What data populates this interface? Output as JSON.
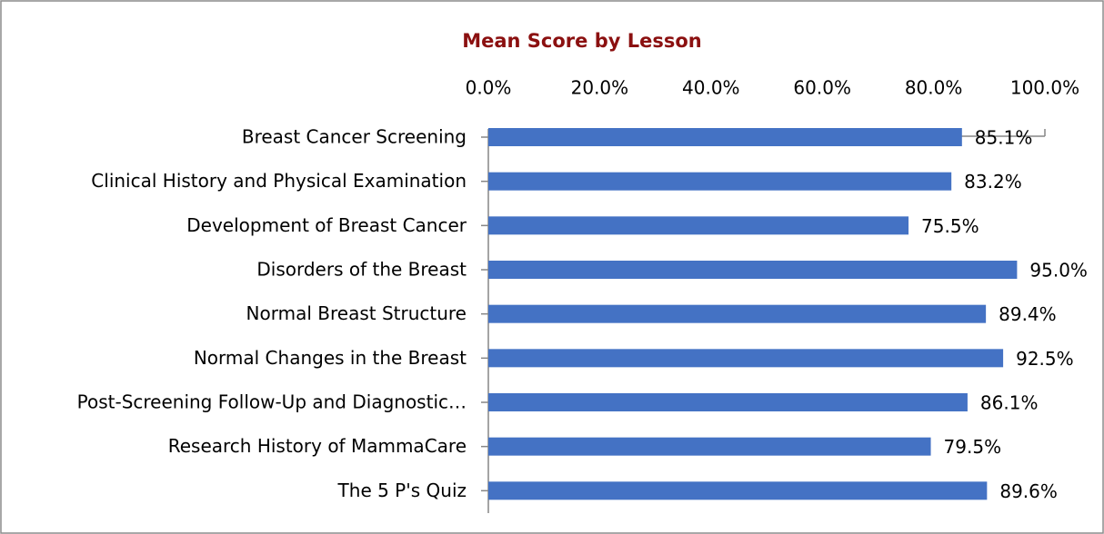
{
  "chart_data": {
    "type": "barh",
    "title": "Mean Score by Lesson",
    "categories": [
      "Breast Cancer Screening",
      "Clinical History and Physical Examination",
      "Development of Breast Cancer",
      "Disorders of the Breast",
      "Normal Breast Structure",
      "Normal Changes in the Breast",
      "Post-Screening Follow-Up and Diagnostic…",
      "Research History of MammaCare",
      "The 5 P's Quiz"
    ],
    "values": [
      85.1,
      83.2,
      75.5,
      95.0,
      89.4,
      92.5,
      86.1,
      79.5,
      89.6
    ],
    "value_labels": [
      "85.1%",
      "83.2%",
      "75.5%",
      "95.0%",
      "89.4%",
      "92.5%",
      "86.1%",
      "79.5%",
      "89.6%"
    ],
    "color": "#4472c4",
    "xlim": [
      0,
      100
    ],
    "xticks": [
      {
        "value": 0,
        "label": "0.0%"
      },
      {
        "value": 20,
        "label": "20.0%"
      },
      {
        "value": 40,
        "label": "40.0%"
      },
      {
        "value": 60,
        "label": "60.0%"
      },
      {
        "value": 80,
        "label": "80.0%"
      },
      {
        "value": 100,
        "label": "100.0%"
      }
    ]
  }
}
